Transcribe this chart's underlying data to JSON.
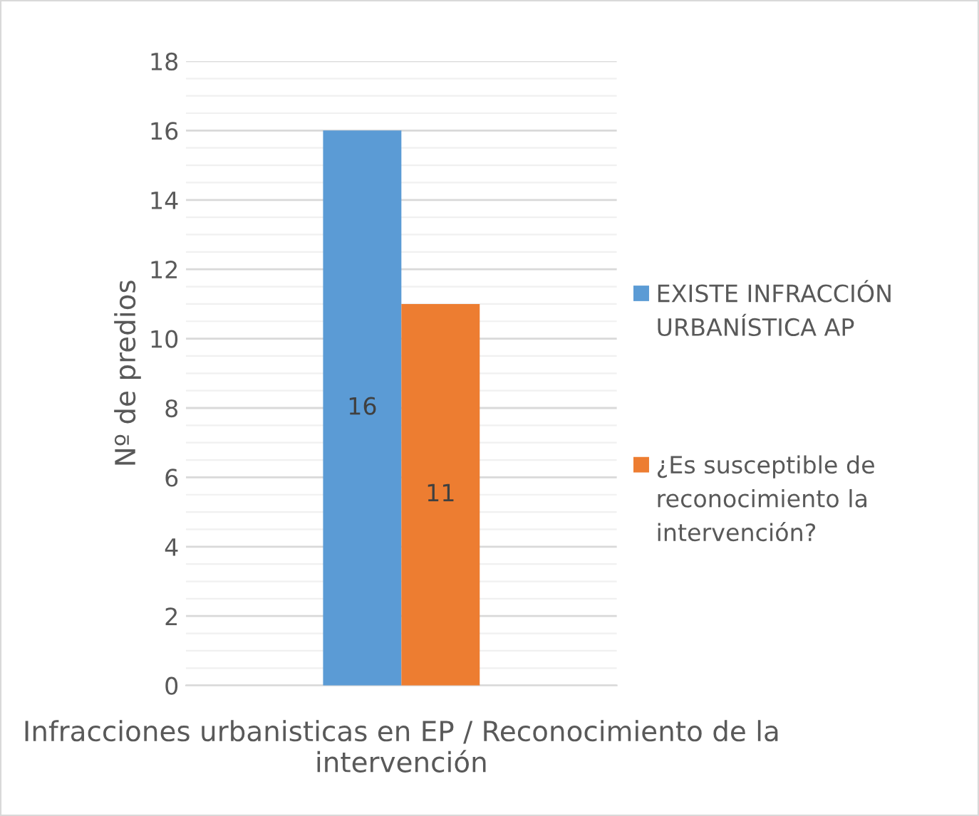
{
  "chart_data": {
    "type": "bar",
    "categories": [
      null
    ],
    "series": [
      {
        "name": "EXISTE INFRACCIÓN URBANÍSTICA AP",
        "color": "#5b9bd5",
        "values": [
          16
        ]
      },
      {
        "name": "¿Es susceptible de reconocimiento la intervención?",
        "color": "#ed7d31",
        "values": [
          11
        ]
      }
    ],
    "xlabel": "Infracciones urbanisticas en EP / Reconocimiento de la intervención",
    "ylabel": "Nº de predios",
    "ylim": [
      0,
      18
    ],
    "yticks": [
      0,
      2,
      4,
      6,
      8,
      10,
      12,
      14,
      16,
      18
    ],
    "grid": "y",
    "legend": "right",
    "data_labels": true
  }
}
